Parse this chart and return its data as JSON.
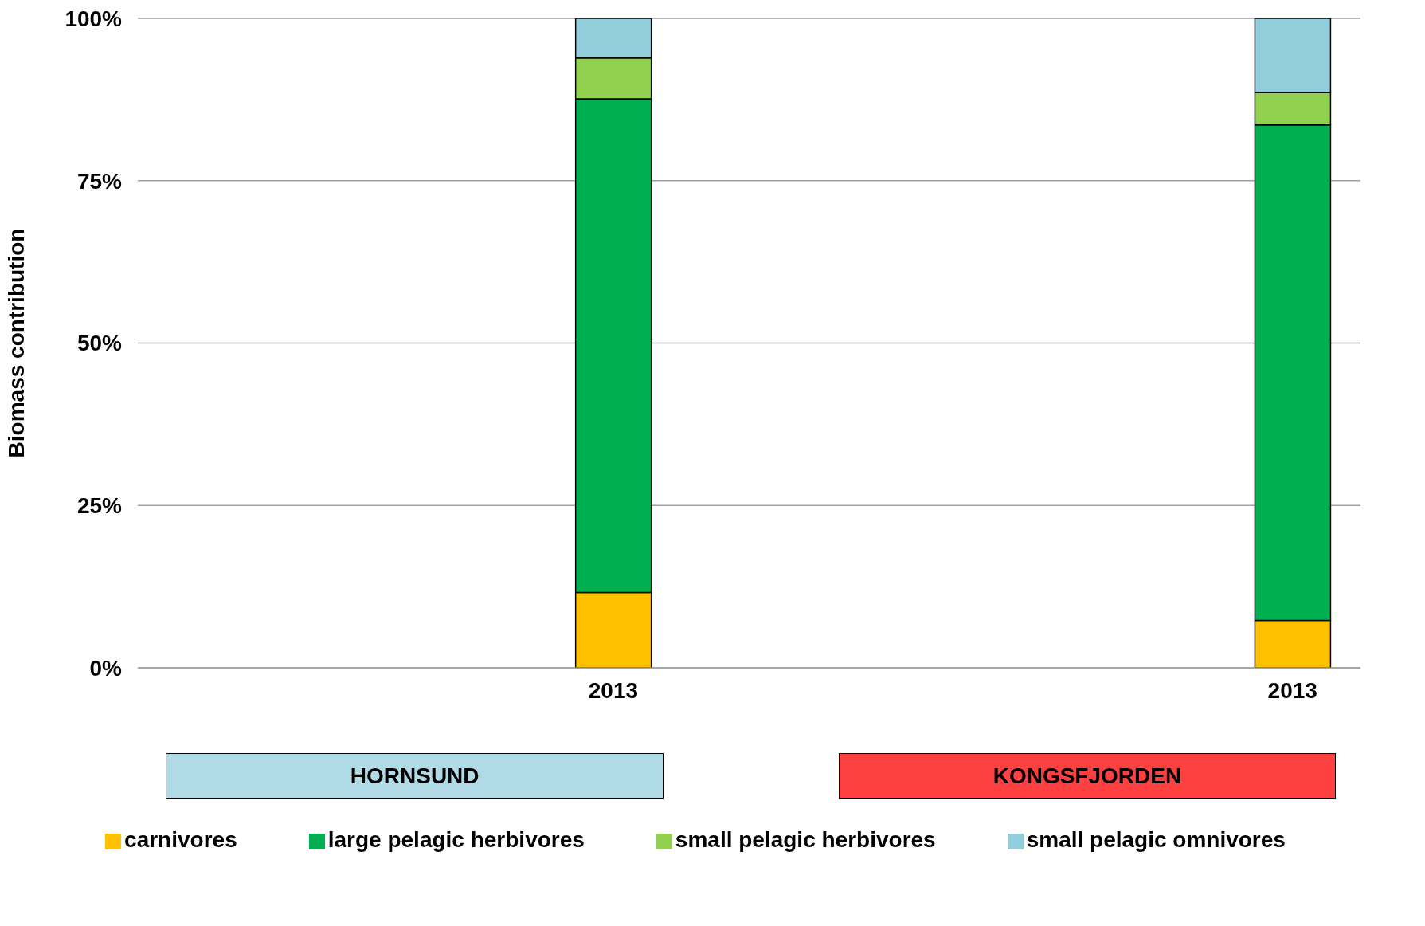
{
  "chart_data": {
    "type": "bar",
    "stacked": true,
    "ylabel": "Biomass contribution",
    "categories": [
      null,
      null,
      null,
      "2013",
      null,
      null,
      null,
      null,
      "2013"
    ],
    "series": [
      {
        "name": "carnivores",
        "color": "#ffc000",
        "values": [
          null,
          null,
          null,
          11.6,
          null,
          null,
          null,
          null,
          7.3
        ]
      },
      {
        "name": "large pelagic herbivores",
        "color": "#00b050",
        "values": [
          null,
          null,
          null,
          76.0,
          null,
          null,
          null,
          null,
          76.3
        ]
      },
      {
        "name": "small pelagic herbivores",
        "color": "#92d050",
        "values": [
          null,
          null,
          null,
          6.3,
          null,
          null,
          null,
          null,
          5.0
        ]
      },
      {
        "name": "small pelagic omnivores",
        "color": "#92cddc",
        "values": [
          null,
          null,
          null,
          6.1,
          null,
          null,
          null,
          null,
          11.4
        ]
      }
    ],
    "ylim": [
      0,
      100
    ],
    "yticks": [
      {
        "value": 0,
        "label": "0%"
      },
      {
        "value": 25,
        "label": "25%"
      },
      {
        "value": 50,
        "label": "50%"
      },
      {
        "value": 75,
        "label": "75%"
      },
      {
        "value": 100,
        "label": "100%"
      }
    ],
    "grid": "y",
    "legend": "bottom",
    "annotations": [
      "HORNSUND",
      "KONGSFJORDEN"
    ]
  }
}
